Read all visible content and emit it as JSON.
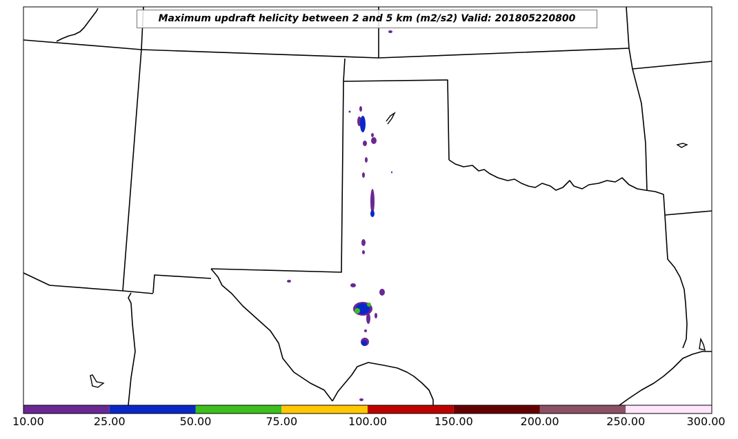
{
  "title": "Maximum updraft helicity between 2 and 5 km (m2/s2) Valid: 201805220800",
  "colorbar": {
    "bins": [
      {
        "from": "10.00",
        "to": "25.00",
        "color": "#6a2894"
      },
      {
        "from": "25.00",
        "to": "50.00",
        "color": "#0a28c8"
      },
      {
        "from": "50.00",
        "to": "75.00",
        "color": "#3cbe1e"
      },
      {
        "from": "75.00",
        "to": "100.00",
        "color": "#ffc800"
      },
      {
        "from": "100.00",
        "to": "150.00",
        "color": "#be0000"
      },
      {
        "from": "150.00",
        "to": "200.00",
        "color": "#640000"
      },
      {
        "from": "200.00",
        "to": "250.00",
        "color": "#8c5064"
      },
      {
        "from": "250.00",
        "to": "300.00",
        "color": "#ffe6fa"
      }
    ],
    "tick_labels": [
      "10.00",
      "25.00",
      "50.00",
      "75.00",
      "100.00",
      "150.00",
      "200.00",
      "250.00",
      "300.00"
    ]
  },
  "colors": {
    "border": "#000000",
    "background": "#ffffff"
  }
}
